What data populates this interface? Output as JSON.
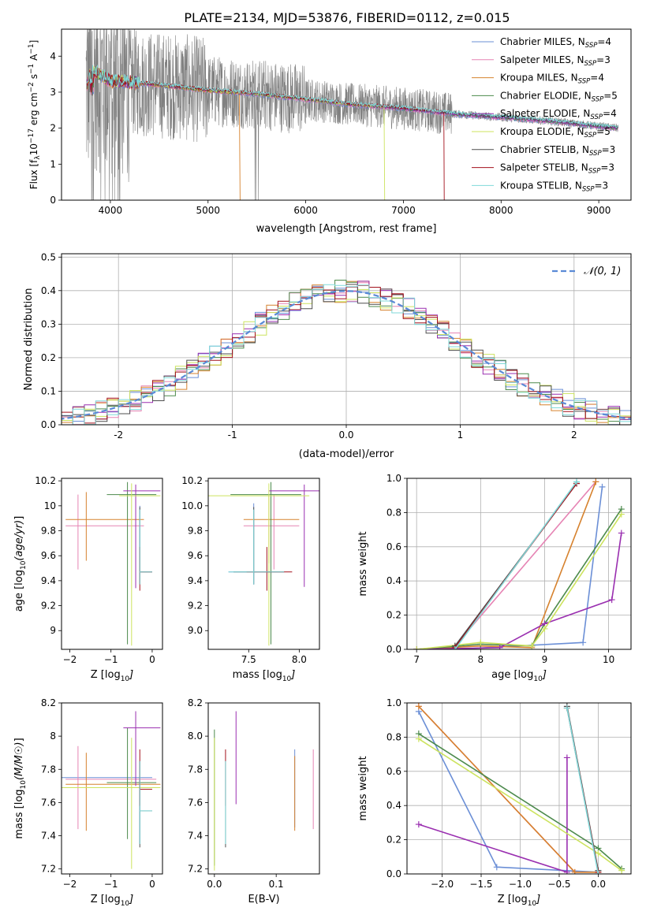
{
  "figure": {
    "title": "PLATE=2134, MJD=53876, FIBERID=0112, z=0.015"
  },
  "colors": {
    "models": [
      "#6b8fd6",
      "#e684b4",
      "#d6822e",
      "#4c8a4c",
      "#9a2fb0",
      "#cce35e",
      "#4f4f4f",
      "#a3111c",
      "#7fd9d9"
    ],
    "data": "#808080"
  },
  "chart_data": [
    {
      "id": "spectrum",
      "type": "line",
      "xlabel": "wavelength [Angstrom, rest frame]",
      "ylabel_parts": [
        "Flux [f",
        "λ",
        "10",
        "−17",
        " erg cm",
        "−2",
        " s",
        "−1",
        " A",
        "−1",
        "]"
      ],
      "xlim": [
        3500,
        9330
      ],
      "ylim": [
        0,
        4.75
      ],
      "xticks": [
        4000,
        5000,
        6000,
        7000,
        8000,
        9000
      ],
      "yticks": [
        0,
        1,
        2,
        3,
        4
      ],
      "grid": false,
      "legend_position": "top-right",
      "legend": [
        {
          "base": "Chabrier MILES, N",
          "sub": "SSP",
          "tail": "=4"
        },
        {
          "base": "Salpeter MILES, N",
          "sub": "SSP",
          "tail": "=3"
        },
        {
          "base": "Kroupa MILES, N",
          "sub": "SSP",
          "tail": "=4"
        },
        {
          "base": "Chabrier ELODIE, N",
          "sub": "SSP",
          "tail": "=5"
        },
        {
          "base": "Salpeter ELODIE, N",
          "sub": "SSP",
          "tail": "=4"
        },
        {
          "base": "Kroupa ELODIE, N",
          "sub": "SSP",
          "tail": "=5"
        },
        {
          "base": "Chabrier STELIB, N",
          "sub": "SSP",
          "tail": "=3"
        },
        {
          "base": "Salpeter STELIB, N",
          "sub": "SSP",
          "tail": "=3"
        },
        {
          "base": "Kroupa STELIB, N",
          "sub": "SSP",
          "tail": "=3"
        }
      ],
      "data_range": [
        3750,
        9200
      ],
      "model_continuum": {
        "x": [
          3750,
          3800,
          3900,
          4000,
          4100,
          4300,
          4500,
          5000,
          5500,
          6000,
          6500,
          7000,
          7500,
          8000,
          8500,
          9000,
          9200
        ],
        "y": [
          3.1,
          3.6,
          3.5,
          3.3,
          3.3,
          3.25,
          3.2,
          3.05,
          2.95,
          2.8,
          2.65,
          2.55,
          2.4,
          2.3,
          2.2,
          2.05,
          2.0
        ]
      },
      "model_cutoffs": [
        {
          "model": 2,
          "x": 5320
        },
        {
          "model": 5,
          "x": 6800
        },
        {
          "model": 7,
          "x": 7410
        }
      ]
    },
    {
      "id": "residuals",
      "type": "histogram",
      "xlabel": "(data-model)/error",
      "ylabel": "Normed distribution",
      "xlim": [
        -2.5,
        2.5
      ],
      "ylim": [
        0,
        0.51
      ],
      "xticks": [
        -2,
        -1,
        0,
        1,
        2
      ],
      "yticks": [
        0.0,
        0.1,
        0.2,
        0.3,
        0.4,
        0.5
      ],
      "grid": true,
      "legend_position": "top-right",
      "legend": [
        {
          "label": "N(0,1)",
          "style": "dashed"
        }
      ],
      "bin_width": 0.1
    },
    {
      "id": "age-vs-Z",
      "type": "errorbar",
      "xlabel": "Z [log10(Z/Z☉)]",
      "ylabel": "age  [log10(age/yr)]",
      "xlim": [
        -2.2,
        0.25
      ],
      "ylim": [
        8.85,
        10.22
      ],
      "xticks": [
        -2,
        -1,
        0
      ],
      "yticks": [
        9.0,
        9.2,
        9.4,
        9.6,
        9.8,
        10.0,
        10.2
      ]
    },
    {
      "id": "age-vs-mass",
      "type": "errorbar",
      "xlabel": "mass [log10(M/M☉)]",
      "ylabel": "",
      "xlim": [
        7.1,
        8.2
      ],
      "ylim": [
        8.85,
        10.22
      ],
      "xticks": [
        7.5,
        8.0
      ],
      "yticks": [
        9.0,
        9.2,
        9.4,
        9.6,
        9.8,
        10.0,
        10.2
      ]
    },
    {
      "id": "mass-weight-vs-age",
      "type": "line",
      "xlabel": "age  [log10(age/yr)]",
      "ylabel": "mass weight",
      "xlim": [
        6.85,
        10.35
      ],
      "ylim": [
        0,
        1.0
      ],
      "xticks": [
        7,
        8,
        9,
        10
      ],
      "yticks": [
        0.0,
        0.2,
        0.4,
        0.6,
        0.8,
        1.0
      ],
      "grid": true,
      "series": [
        {
          "model": 0,
          "x": [
            7.0,
            7.6,
            9.6,
            9.9
          ],
          "y": [
            0.0,
            0.0,
            0.04,
            0.95
          ]
        },
        {
          "model": 1,
          "x": [
            7.0,
            7.6,
            9.8
          ],
          "y": [
            0.0,
            0.02,
            0.98
          ]
        },
        {
          "model": 2,
          "x": [
            7.0,
            8.0,
            8.8,
            9.8
          ],
          "y": [
            0.0,
            0.02,
            0.01,
            0.98
          ]
        },
        {
          "model": 3,
          "x": [
            7.0,
            8.0,
            8.8,
            9.0,
            10.2
          ],
          "y": [
            0.0,
            0.03,
            0.02,
            0.15,
            0.82
          ]
        },
        {
          "model": 4,
          "x": [
            7.0,
            8.3,
            9.0,
            10.05,
            10.2
          ],
          "y": [
            0.0,
            0.01,
            0.15,
            0.29,
            0.68
          ]
        },
        {
          "model": 5,
          "x": [
            7.0,
            8.0,
            8.8,
            9.0,
            10.2
          ],
          "y": [
            0.0,
            0.04,
            0.02,
            0.12,
            0.79
          ]
        },
        {
          "model": 6,
          "x": [
            7.6,
            9.5
          ],
          "y": [
            0.02,
            0.97
          ]
        },
        {
          "model": 7,
          "x": [
            7.6,
            9.5
          ],
          "y": [
            0.01,
            0.97
          ]
        },
        {
          "model": 8,
          "x": [
            7.6,
            9.5
          ],
          "y": [
            0.0,
            0.98
          ]
        }
      ]
    },
    {
      "id": "mass-vs-Z",
      "type": "errorbar",
      "xlabel": "Z [log10(Z/Z☉)]",
      "ylabel": "mass [log10(M/M☉)]",
      "xlim": [
        -2.2,
        0.25
      ],
      "ylim": [
        7.17,
        8.2
      ],
      "xticks": [
        -2,
        -1,
        0
      ],
      "yticks": [
        7.2,
        7.4,
        7.6,
        7.8,
        8.0,
        8.2
      ]
    },
    {
      "id": "mass-vs-EBV",
      "type": "errorbar",
      "xlabel": "E(B-V)",
      "ylabel": "",
      "xlim": [
        -0.01,
        0.17
      ],
      "ylim": [
        7.17,
        8.2
      ],
      "xticks": [
        0.0,
        0.1
      ],
      "yticks": [
        7.2,
        7.4,
        7.6,
        7.8,
        8.0,
        8.2
      ]
    },
    {
      "id": "mass-weight-vs-Z",
      "type": "line",
      "xlabel": "Z [log10(Z/Z☉)]",
      "ylabel": "mass weight",
      "xlim": [
        -2.45,
        0.42
      ],
      "ylim": [
        0,
        1.0
      ],
      "xticks": [
        -2.0,
        -1.5,
        -1.0,
        -0.5,
        0.0
      ],
      "yticks": [
        0.0,
        0.2,
        0.4,
        0.6,
        0.8,
        1.0
      ],
      "grid": true,
      "series": [
        {
          "model": 0,
          "x": [
            -2.3,
            -1.3,
            0.0
          ],
          "y": [
            0.95,
            0.04,
            0.01
          ]
        },
        {
          "model": 1,
          "x": [
            -2.3,
            -0.3,
            0.0
          ],
          "y": [
            0.98,
            0.01,
            0.01
          ]
        },
        {
          "model": 2,
          "x": [
            -2.3,
            -0.3,
            0.0
          ],
          "y": [
            0.98,
            0.01,
            0.01
          ]
        },
        {
          "model": 3,
          "x": [
            -2.3,
            0.0,
            0.3
          ],
          "y": [
            0.82,
            0.15,
            0.03
          ]
        },
        {
          "model": 4,
          "x": [
            -2.3,
            -0.4,
            -0.4
          ],
          "y": [
            0.29,
            0.01,
            0.68
          ]
        },
        {
          "model": 5,
          "x": [
            -2.3,
            0.0,
            0.3
          ],
          "y": [
            0.79,
            0.12,
            0.02
          ]
        },
        {
          "model": 6,
          "x": [
            -0.4,
            0.0
          ],
          "y": [
            0.98,
            0.02
          ]
        },
        {
          "model": 7,
          "x": [
            -0.4,
            0.0
          ],
          "y": [
            0.97,
            0.01
          ]
        },
        {
          "model": 8,
          "x": [
            -0.4,
            0.0
          ],
          "y": [
            0.97,
            0.0
          ]
        }
      ]
    }
  ]
}
